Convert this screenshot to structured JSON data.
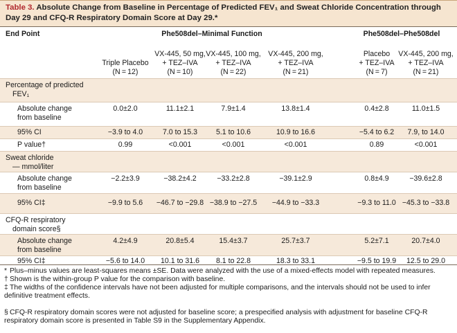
{
  "title": {
    "number": "Table 3.",
    "text": "Absolute Change from Baseline in Percentage of Predicted FEV₁ and Sweat Chloride Concentration through Day 29 and CFQ-R Respiratory Domain Score at Day 29.*"
  },
  "header": {
    "end_point": "End Point",
    "group1": "Phe508del–Minimal Function",
    "group2": "Phe508del–Phe508del",
    "columns": [
      {
        "line1": "",
        "line2": "Triple Placebo",
        "line3": "(N = 12)"
      },
      {
        "line1": "VX-445, 50 mg,",
        "line2": "+ TEZ–IVA",
        "line3": "(N = 10)"
      },
      {
        "line1": "VX-445, 100 mg,",
        "line2": "+ TEZ–IVA",
        "line3": "(N = 22)"
      },
      {
        "line1": "VX-445, 200 mg,",
        "line2": "+ TEZ–IVA",
        "line3": "(N = 21)"
      },
      {
        "line1": "Placebo",
        "line2": "+ TEZ–IVA",
        "line3": "(N = 7)"
      },
      {
        "line1": "VX-445, 200 mg,",
        "line2": "+ TEZ–IVA",
        "line3": "(N = 21)"
      }
    ]
  },
  "sections": [
    {
      "title1": "Percentage of predicted",
      "title2": "FEV₁",
      "rows": [
        {
          "label1": "Absolute change",
          "label2": "from baseline",
          "values": [
            "0.0±2.0",
            "11.1±2.1",
            "7.9±1.4",
            "13.8±1.4",
            "0.4±2.8",
            "11.0±1.5"
          ]
        },
        {
          "label1": "95% CI",
          "label2": "",
          "values": [
            "−3.9 to 4.0",
            "7.0 to 15.3",
            "5.1 to 10.6",
            "10.9 to 16.6",
            "−5.4 to 6.2",
            "7.9, to 14.0"
          ]
        },
        {
          "label1": "P value†",
          "label2": "",
          "values": [
            "0.99",
            "<0.001",
            "<0.001",
            "<0.001",
            "0.89",
            "<0.001"
          ]
        }
      ]
    },
    {
      "title1": "Sweat chloride",
      "title2": "— mmol/liter",
      "rows": [
        {
          "label1": "Absolute change",
          "label2": "from baseline",
          "values": [
            "−2.2±3.9",
            "−38.2±4.2",
            "−33.2±2.8",
            "−39.1±2.9",
            "0.8±4.9",
            "−39.6±2.8"
          ]
        },
        {
          "label1": "95% CI‡",
          "label2": "",
          "values": [
            "−9.9 to 5.6",
            "−46.7 to −29.8",
            "−38.9 to −27.5",
            "−44.9 to −33.3",
            "−9.3 to 11.0",
            "−45.3 to −33.8"
          ]
        }
      ]
    },
    {
      "title1": "CFQ-R respiratory",
      "title2": "domain score§",
      "rows": [
        {
          "label1": "Absolute change",
          "label2": "from baseline",
          "values": [
            "4.2±4.9",
            "20.8±5.4",
            "15.4±3.7",
            "25.7±3.7",
            "5.2±7.1",
            "20.7±4.0"
          ]
        },
        {
          "label1": "95% CI‡",
          "label2": "",
          "values": [
            "−5.6 to 14.0",
            "10.1 to 31.6",
            "8.1 to 22.8",
            "18.3 to 33.1",
            "−9.5 to 19.9",
            "12.5 to 29.0"
          ]
        }
      ]
    }
  ],
  "footnotes": [
    {
      "mark": "*",
      "text": "Plus–minus values are least-squares means ±SE. Data were analyzed with the use of a mixed-effects model with repeated measures."
    },
    {
      "mark": "†",
      "text": "Shown is the within-group P value for the comparison with baseline."
    },
    {
      "mark": "‡",
      "text": "The widths of the confidence intervals have not been adjusted for multiple comparisons, and the intervals should not be used to infer definitive treatment effects."
    },
    {
      "mark": "§",
      "text": "CFQ-R respiratory domain scores were not adjusted for baseline score; a prespecified analysis with adjustment for baseline CFQ-R respiratory domain score is presented in Table S9 in the Supplementary Appendix."
    }
  ]
}
